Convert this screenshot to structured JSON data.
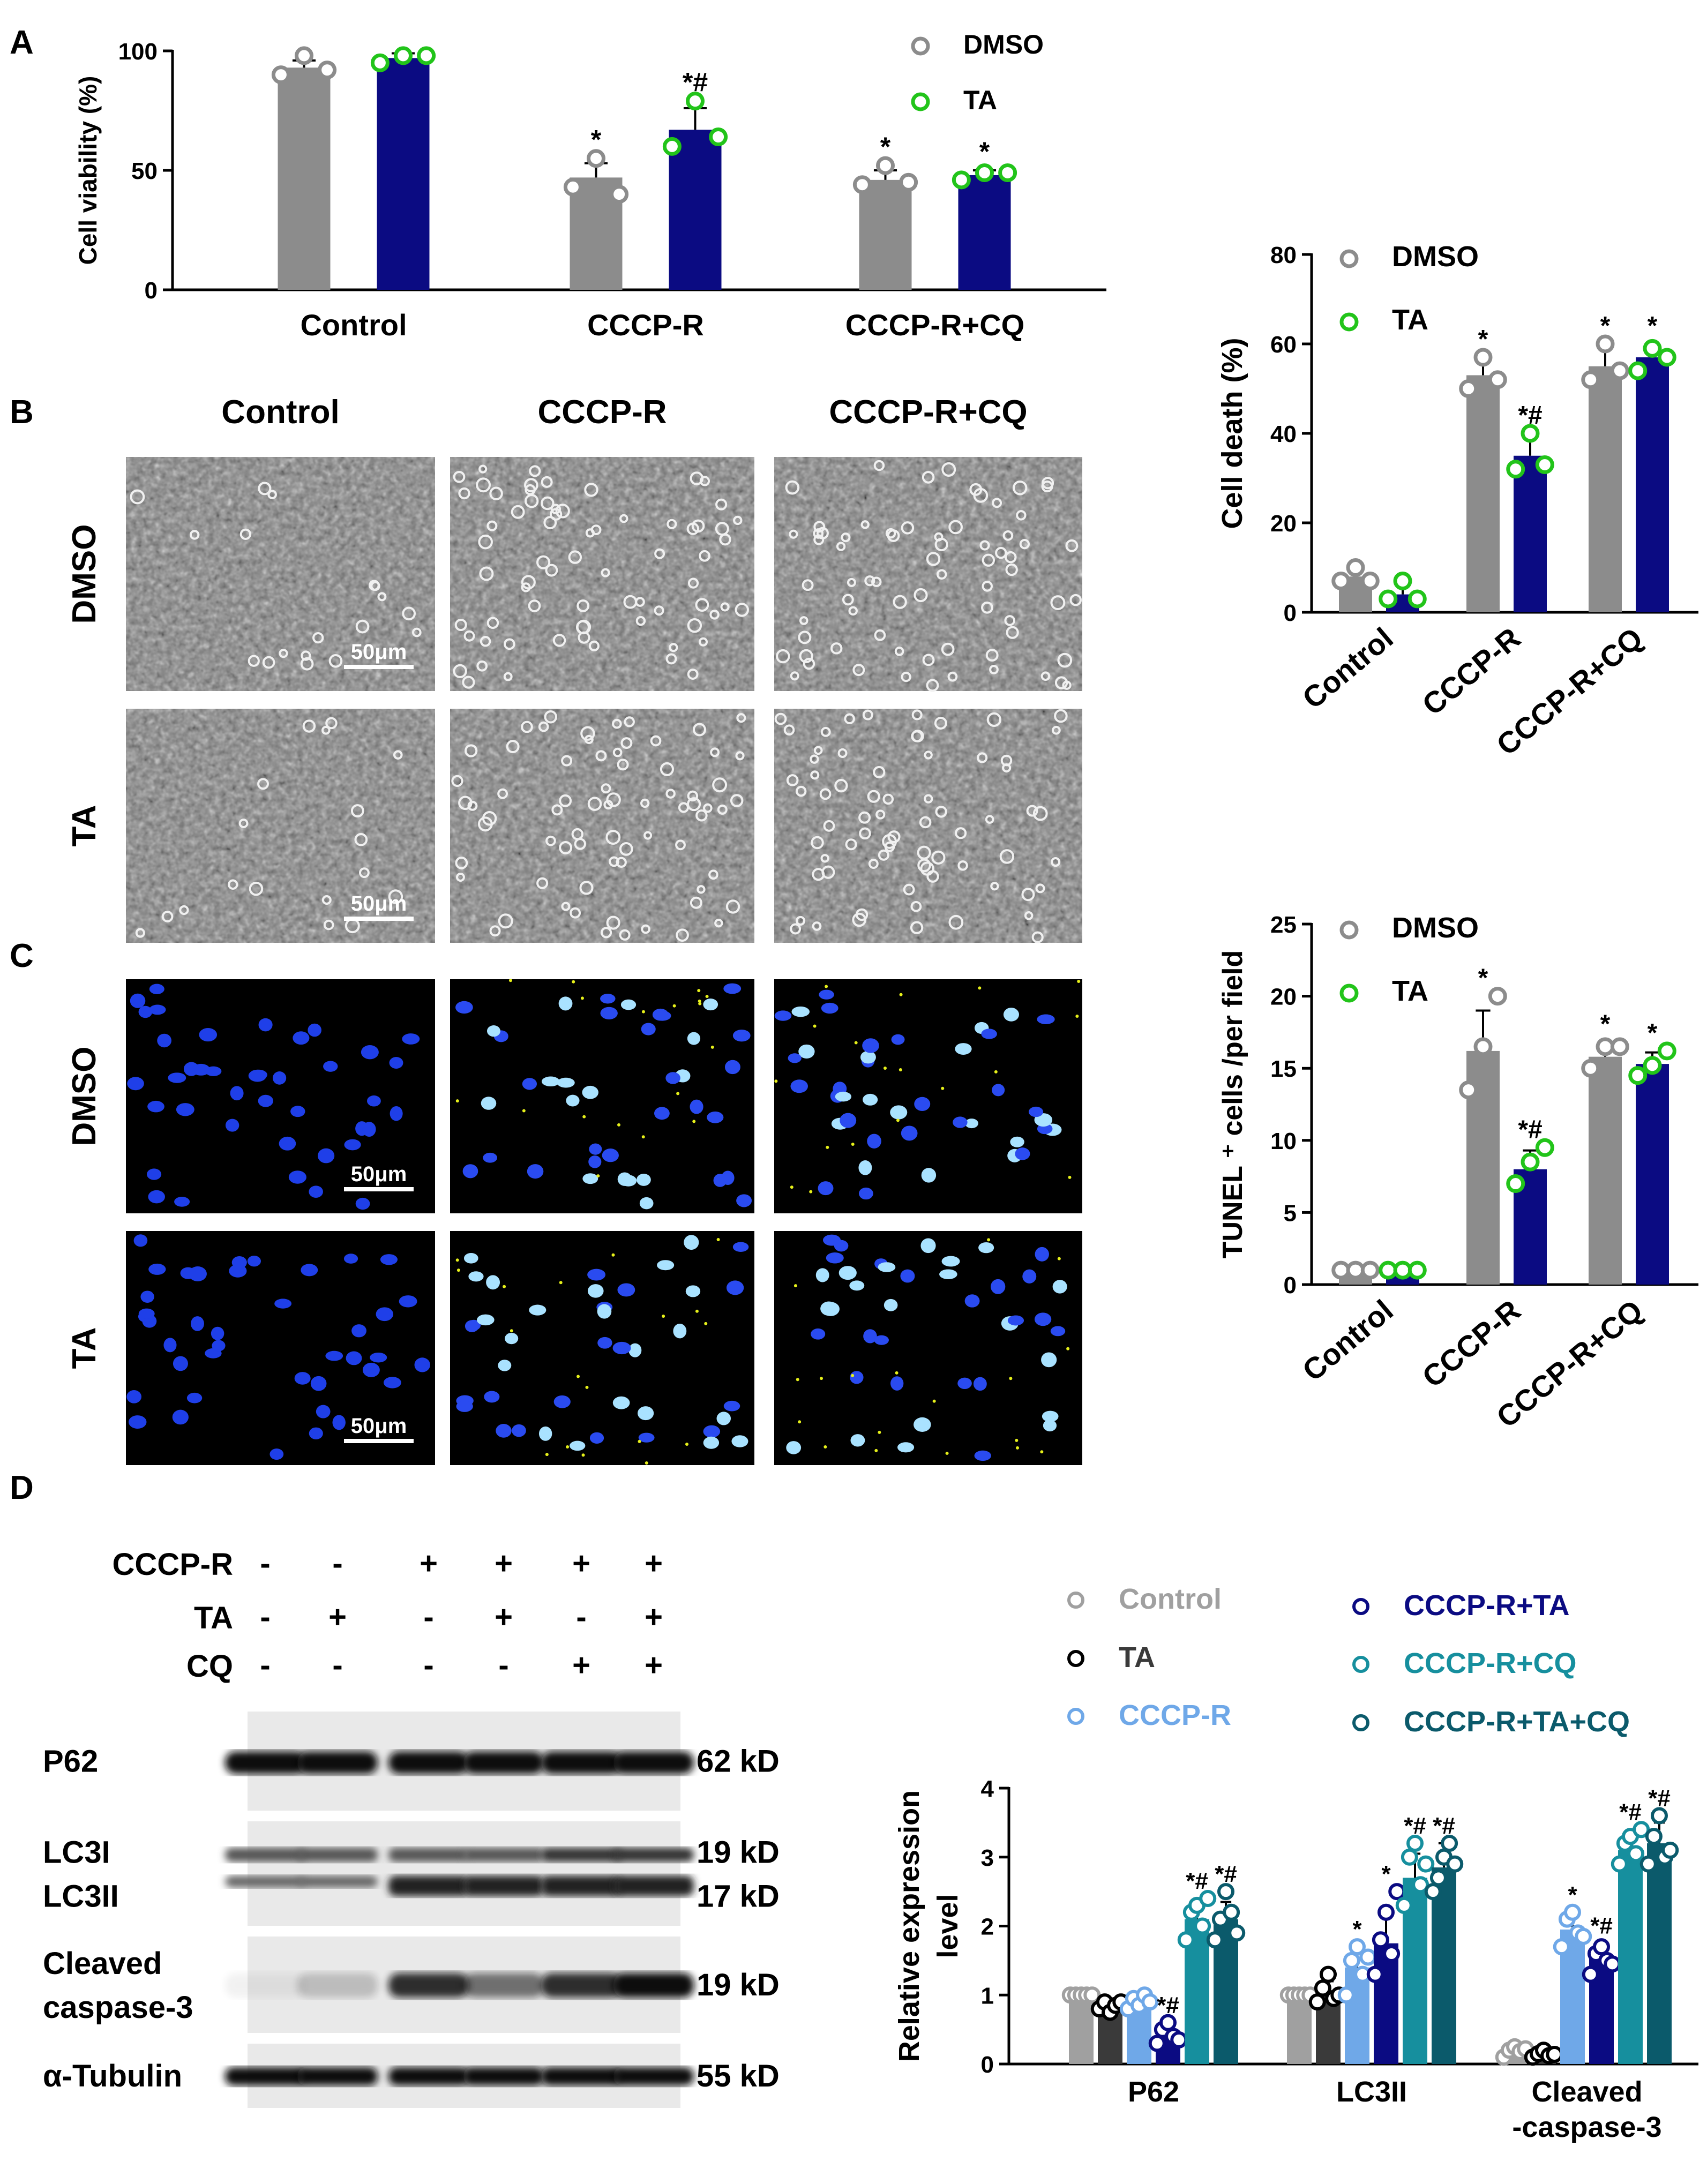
{
  "panel_letters": [
    "A",
    "B",
    "C",
    "D"
  ],
  "colors": {
    "dmso_bar": "#8c8c8c",
    "ta_bar": "#0b0b82",
    "dmso_point": "#8c8c8c",
    "ta_point": "#22c41a",
    "d_groups": [
      "#a0a0a0",
      "#3a3a3a",
      "#6fa8e8",
      "#0b0b82",
      "#168f9e",
      "#0b5a6b"
    ],
    "d_points": [
      "#a0a0a0",
      "#000000",
      "#6fa8e8",
      "#0b0b82",
      "#168f9e",
      "#0b5a6b"
    ]
  },
  "chart_data": [
    {
      "id": "A",
      "type": "bar",
      "ylabel": "Cell viability (%)",
      "categories": [
        "Control",
        "CCCP-R",
        "CCCP-R+CQ"
      ],
      "ylim": [
        0,
        100
      ],
      "yticks": [
        0,
        50,
        100
      ],
      "legend": [
        "DMSO",
        "TA"
      ],
      "legend_position": "top-right",
      "series": [
        {
          "name": "DMSO",
          "values": [
            93,
            47,
            46
          ],
          "errors": [
            3,
            6,
            4
          ],
          "points": [
            [
              90,
              98,
              92
            ],
            [
              43,
              55,
              40
            ],
            [
              44,
              52,
              45
            ]
          ],
          "annotations": [
            "",
            "*",
            "*"
          ]
        },
        {
          "name": "TA",
          "values": [
            97,
            67,
            48
          ],
          "errors": [
            2,
            9,
            2
          ],
          "points": [
            [
              95,
              98,
              98
            ],
            [
              60,
              79,
              64
            ],
            [
              46,
              49,
              49
            ]
          ],
          "annotations": [
            "",
            "*#",
            "*"
          ]
        }
      ]
    },
    {
      "id": "cell-death",
      "type": "bar",
      "ylabel": "Cell death (%)",
      "categories": [
        "Control",
        "CCCP-R",
        "CCCP-R+CQ"
      ],
      "ylim": [
        0,
        80
      ],
      "yticks": [
        0,
        20,
        40,
        60,
        80
      ],
      "legend": [
        "DMSO",
        "TA"
      ],
      "legend_position": "top-right",
      "series": [
        {
          "name": "DMSO",
          "values": [
            8,
            53,
            55
          ],
          "errors": [
            2,
            4,
            4
          ],
          "points": [
            [
              7,
              10,
              7
            ],
            [
              50,
              57,
              52
            ],
            [
              52,
              60,
              54
            ]
          ],
          "annotations": [
            "",
            "*",
            "*"
          ]
        },
        {
          "name": "TA",
          "values": [
            4,
            35,
            57
          ],
          "errors": [
            3,
            5,
            3
          ],
          "points": [
            [
              3,
              7,
              3
            ],
            [
              32,
              40,
              33
            ],
            [
              54,
              59,
              57
            ]
          ],
          "annotations": [
            "",
            "*#",
            "*"
          ]
        }
      ]
    },
    {
      "id": "tunel",
      "type": "bar",
      "ylabel": "TUNEL ⁺ cells /per field",
      "categories": [
        "Control",
        "CCCP-R",
        "CCCP-R+CQ"
      ],
      "ylim": [
        0,
        25
      ],
      "yticks": [
        0,
        5,
        10,
        15,
        20,
        25
      ],
      "legend": [
        "DMSO",
        "TA"
      ],
      "legend_position": "top-right",
      "series": [
        {
          "name": "DMSO",
          "values": [
            1,
            16.2,
            15.8
          ],
          "errors": [
            0.2,
            2.8,
            1
          ],
          "points": [
            [
              1,
              1,
              1
            ],
            [
              13.5,
              16.5,
              20
            ],
            [
              15,
              16.5,
              16.5
            ]
          ],
          "annotations": [
            "",
            "*",
            "*"
          ]
        },
        {
          "name": "TA",
          "values": [
            1,
            8,
            15.3
          ],
          "errors": [
            0.2,
            1.3,
            0.8
          ],
          "points": [
            [
              1,
              1,
              1
            ],
            [
              7,
              8.5,
              9.5
            ],
            [
              14.5,
              15.2,
              16.2
            ]
          ],
          "annotations": [
            "",
            "*#",
            "*"
          ]
        }
      ]
    },
    {
      "id": "D",
      "type": "bar",
      "ylabel": "Relative expression level",
      "categories": [
        "P62",
        "LC3II",
        "Cleaved -caspase-3"
      ],
      "category_lines": [
        [
          "P62"
        ],
        [
          "LC3II"
        ],
        [
          "Cleaved",
          "-caspase-3"
        ]
      ],
      "ylim": [
        0,
        4
      ],
      "yticks": [
        0,
        1,
        2,
        3,
        4
      ],
      "legend": [
        "Control",
        "TA",
        "CCCP-R",
        "CCCP-R+TA",
        "CCCP-R+CQ",
        "CCCP-R+TA+CQ"
      ],
      "legend_position": "top",
      "series": [
        {
          "name": "Control",
          "values": [
            1.0,
            1.0,
            0.2
          ],
          "errors": [
            0.03,
            0.03,
            0.05
          ],
          "points": [
            [
              1,
              1,
              1,
              1,
              1
            ],
            [
              1,
              1,
              1,
              1,
              1
            ],
            [
              0.1,
              0.2,
              0.25,
              0.18,
              0.22
            ]
          ],
          "annotations": [
            "",
            "",
            ""
          ]
        },
        {
          "name": "TA",
          "values": [
            0.85,
            1.05,
            0.15
          ],
          "errors": [
            0.08,
            0.15,
            0.04
          ],
          "points": [
            [
              0.8,
              0.9,
              0.75,
              0.85,
              0.9
            ],
            [
              0.9,
              1.1,
              1.3,
              0.95,
              1.0
            ],
            [
              0.1,
              0.15,
              0.2,
              0.12,
              0.14
            ]
          ],
          "annotations": [
            "",
            "",
            ""
          ]
        },
        {
          "name": "CCCP-R",
          "values": [
            0.9,
            1.4,
            1.95
          ],
          "errors": [
            0.1,
            0.3,
            0.2
          ],
          "points": [
            [
              0.8,
              0.95,
              0.85,
              1.0,
              0.9
            ],
            [
              1.0,
              1.5,
              1.7,
              1.3,
              1.55
            ],
            [
              1.7,
              2.1,
              2.2,
              1.9,
              1.85
            ]
          ],
          "annotations": [
            "",
            "*",
            "*"
          ]
        },
        {
          "name": "CCCP-R+TA",
          "values": [
            0.45,
            1.75,
            1.55
          ],
          "errors": [
            0.12,
            0.45,
            0.2
          ],
          "points": [
            [
              0.3,
              0.5,
              0.6,
              0.4,
              0.35
            ],
            [
              1.3,
              1.8,
              2.2,
              1.6,
              2.5
            ],
            [
              1.3,
              1.6,
              1.7,
              1.5,
              1.45
            ]
          ],
          "annotations": [
            "*#",
            "*",
            "*#"
          ]
        },
        {
          "name": "CCCP-R+CQ",
          "values": [
            2.1,
            2.7,
            3.1
          ],
          "errors": [
            0.2,
            0.35,
            0.15
          ],
          "points": [
            [
              1.8,
              2.2,
              2.3,
              2.0,
              2.4
            ],
            [
              2.3,
              3.0,
              3.2,
              2.6,
              2.9
            ],
            [
              2.9,
              3.2,
              3.3,
              3.05,
              3.4
            ]
          ],
          "annotations": [
            "*#",
            "*#",
            "*#"
          ]
        },
        {
          "name": "CCCP-R+TA+CQ",
          "values": [
            2.1,
            2.85,
            3.2
          ],
          "errors": [
            0.25,
            0.35,
            0.3
          ],
          "points": [
            [
              1.8,
              2.1,
              2.5,
              2.2,
              1.9
            ],
            [
              2.5,
              2.7,
              3.0,
              3.2,
              2.9
            ],
            [
              2.9,
              3.3,
              3.6,
              3.0,
              3.1
            ]
          ],
          "annotations": [
            "*#",
            "*#",
            "*#"
          ]
        }
      ]
    }
  ],
  "micrographs": {
    "column_labels": [
      "Control",
      "CCCP-R",
      "CCCP-R+CQ"
    ],
    "row_labels": [
      "DMSO",
      "TA"
    ],
    "scale_bar": "50μm"
  },
  "western_blot": {
    "treatments": [
      {
        "label": "CCCP-R",
        "signs": [
          "-",
          "-",
          "+",
          "+",
          "+",
          "+"
        ]
      },
      {
        "label": "TA",
        "signs": [
          "-",
          "+",
          "-",
          "+",
          "-",
          "+"
        ]
      },
      {
        "label": "CQ",
        "signs": [
          "-",
          "-",
          "-",
          "-",
          "+",
          "+"
        ]
      }
    ],
    "bands": [
      {
        "label_lines": [
          "P62"
        ],
        "weights": [
          "62 kD"
        ]
      },
      {
        "label_lines": [
          "LC3I",
          "LC3II"
        ],
        "weights": [
          "19 kD",
          "17 kD"
        ]
      },
      {
        "label_lines": [
          "Cleaved",
          "caspase-3"
        ],
        "weights": [
          "19 kD"
        ]
      },
      {
        "label_lines": [
          "α-Tubulin"
        ],
        "weights": [
          "55 kD"
        ]
      }
    ]
  }
}
